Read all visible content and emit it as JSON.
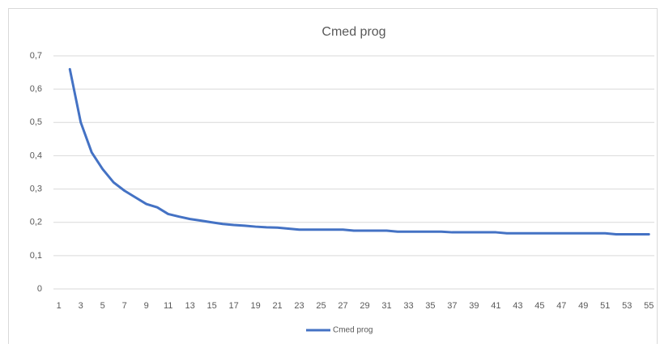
{
  "chart_data": {
    "type": "line",
    "title": "Cmed prog",
    "categories": [
      1,
      null,
      3,
      null,
      5,
      null,
      7,
      null,
      9,
      null,
      11,
      null,
      13,
      null,
      15,
      null,
      17,
      null,
      19,
      null,
      21,
      null,
      23,
      null,
      25,
      null,
      27,
      null,
      29,
      null,
      31,
      null,
      33,
      null,
      35,
      null,
      37,
      null,
      39,
      null,
      41,
      null,
      43,
      null,
      45,
      null,
      47,
      null,
      49,
      null,
      51,
      null,
      53,
      null,
      55
    ],
    "series": [
      {
        "name": "Cmed prog",
        "color": "#4472c4",
        "values": [
          null,
          0.66,
          0.5,
          0.41,
          0.36,
          0.32,
          0.295,
          0.275,
          0.255,
          0.245,
          0.225,
          0.217,
          0.21,
          0.205,
          0.2,
          0.195,
          0.192,
          0.19,
          0.187,
          0.185,
          0.184,
          0.181,
          0.178,
          0.178,
          0.178,
          0.178,
          0.178,
          0.175,
          0.175,
          0.175,
          0.175,
          0.172,
          0.172,
          0.172,
          0.172,
          0.172,
          0.17,
          0.17,
          0.17,
          0.17,
          0.17,
          0.167,
          0.167,
          0.167,
          0.167,
          0.167,
          0.167,
          0.167,
          0.167,
          0.167,
          0.167,
          0.164,
          0.164,
          0.164,
          0.164
        ]
      }
    ],
    "ylim": [
      0,
      0.7
    ],
    "yticks": [
      0,
      {
        "value": 0.1,
        "label": "0,1"
      },
      {
        "value": 0.2,
        "label": "0,2"
      },
      {
        "value": 0.3,
        "label": "0,3"
      },
      {
        "value": 0.4,
        "label": "0,4"
      },
      {
        "value": 0.5,
        "label": "0,5"
      },
      {
        "value": 0.6,
        "label": "0,6"
      },
      {
        "value": 0.7,
        "label": "0,7"
      }
    ],
    "grid": true,
    "legend": "bottom"
  }
}
